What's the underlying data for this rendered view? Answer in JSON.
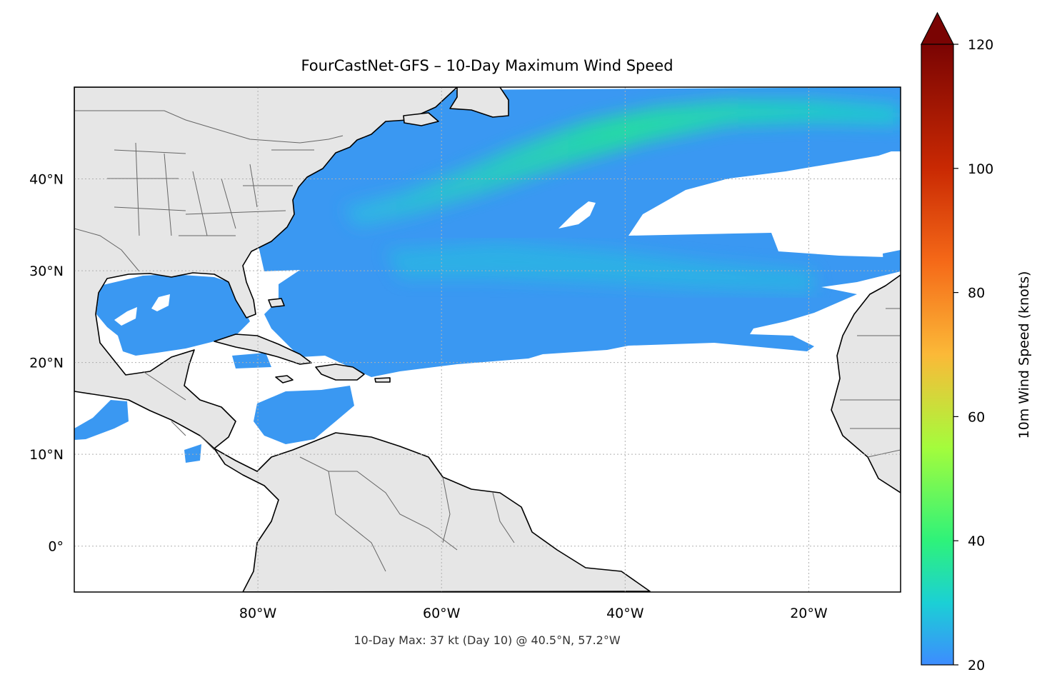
{
  "title": "FourCastNet-GFS – 10-Day Maximum Wind Speed",
  "footer_note": "10-Day Max: 37 kt (Day 10) @ 40.5°N, 57.2°W",
  "map": {
    "lon_range": [
      -100,
      -10
    ],
    "lat_range": [
      -5,
      50
    ],
    "lon_ticks": [
      {
        "value": -80,
        "label": "80°W"
      },
      {
        "value": -60,
        "label": "60°W"
      },
      {
        "value": -40,
        "label": "40°W"
      },
      {
        "value": -20,
        "label": "20°W"
      }
    ],
    "lat_ticks": [
      {
        "value": 40,
        "label": "40°N"
      },
      {
        "value": 30,
        "label": "30°N"
      },
      {
        "value": 20,
        "label": "20°N"
      },
      {
        "value": 10,
        "label": "10°N"
      },
      {
        "value": 0,
        "label": "0°"
      }
    ],
    "land_color": "#e6e6e6",
    "coast_color": "#000000",
    "border_color": "#666666",
    "grid_color": "#b0b0b0",
    "field_color": "#3a98f2",
    "field_core_color": "#22e49a"
  },
  "colorbar": {
    "label": "10m Wind Speed (knots)",
    "min": 20,
    "max": 120,
    "ticks": [
      {
        "value": 20,
        "label": "20"
      },
      {
        "value": 40,
        "label": "40"
      },
      {
        "value": 60,
        "label": "60"
      },
      {
        "value": 80,
        "label": "80"
      },
      {
        "value": 100,
        "label": "100"
      },
      {
        "value": 120,
        "label": "120"
      }
    ],
    "extend": "max",
    "stops": [
      {
        "value": 20,
        "color": "#3d8cff"
      },
      {
        "value": 30,
        "color": "#1bd0d5"
      },
      {
        "value": 40,
        "color": "#2ef27a"
      },
      {
        "value": 55,
        "color": "#a4fc3c"
      },
      {
        "value": 70,
        "color": "#fbb938"
      },
      {
        "value": 85,
        "color": "#f56918"
      },
      {
        "value": 100,
        "color": "#c92903"
      },
      {
        "value": 120,
        "color": "#7a0403"
      }
    ]
  }
}
